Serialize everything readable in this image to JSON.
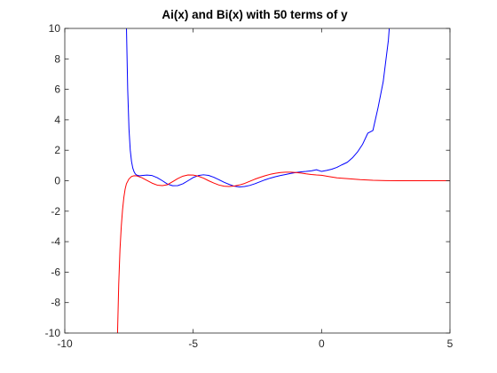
{
  "chart_data": {
    "type": "line",
    "title": "Ai(x) and Bi(x) with 50 terms of y",
    "xlabel": "",
    "ylabel": "",
    "xlim": [
      -10,
      5
    ],
    "ylim": [
      -10,
      10
    ],
    "xticks": [
      -10,
      -5,
      0,
      5
    ],
    "yticks": [
      -10,
      -8,
      -6,
      -4,
      -2,
      0,
      2,
      4,
      6,
      8,
      10
    ],
    "grid": false,
    "legend": "none",
    "series": [
      {
        "color": "#0000ff",
        "x": [
          -7.6,
          -7.55,
          -7.5,
          -7.45,
          -7.4,
          -7.35,
          -7.3,
          -7.25,
          -7.2,
          -7.1,
          -7.0,
          -6.8,
          -6.6,
          -6.4,
          -6.2,
          -6.0,
          -5.8,
          -5.6,
          -5.4,
          -5.2,
          -5.0,
          -4.8,
          -4.6,
          -4.4,
          -4.2,
          -4.0,
          -3.8,
          -3.6,
          -3.4,
          -3.2,
          -3.0,
          -2.8,
          -2.6,
          -2.4,
          -2.2,
          -2.0,
          -1.8,
          -1.6,
          -1.4,
          -1.2,
          -1.0,
          -0.8,
          -0.6,
          -0.4,
          -0.2,
          0.0,
          0.2,
          0.4,
          0.6,
          0.8,
          1.0,
          1.2,
          1.4,
          1.6,
          1.8,
          2.0,
          2.2,
          2.4,
          2.6,
          2.65
        ],
        "y": [
          10.2,
          6.0,
          3.4,
          2.0,
          1.25,
          0.82,
          0.58,
          0.44,
          0.37,
          0.32,
          0.34,
          0.37,
          0.34,
          0.2,
          0.0,
          -0.22,
          -0.33,
          -0.32,
          -0.2,
          0.0,
          0.21,
          0.34,
          0.39,
          0.35,
          0.23,
          0.07,
          -0.1,
          -0.24,
          -0.36,
          -0.41,
          -0.38,
          -0.31,
          -0.2,
          -0.07,
          0.06,
          0.17,
          0.26,
          0.34,
          0.41,
          0.48,
          0.54,
          0.58,
          0.61,
          0.65,
          0.72,
          0.61,
          0.68,
          0.76,
          0.88,
          1.05,
          1.21,
          1.5,
          1.89,
          2.4,
          3.12,
          3.3,
          4.8,
          6.5,
          9.2,
          10.3
        ]
      },
      {
        "color": "#ff0000",
        "x": [
          -7.95,
          -7.9,
          -7.85,
          -7.8,
          -7.75,
          -7.7,
          -7.65,
          -7.6,
          -7.5,
          -7.4,
          -7.3,
          -7.2,
          -7.1,
          -7.0,
          -6.8,
          -6.6,
          -6.4,
          -6.2,
          -6.0,
          -5.8,
          -5.6,
          -5.4,
          -5.2,
          -5.0,
          -4.8,
          -4.6,
          -4.4,
          -4.2,
          -4.0,
          -3.8,
          -3.6,
          -3.4,
          -3.2,
          -3.0,
          -2.8,
          -2.6,
          -2.4,
          -2.2,
          -2.0,
          -1.8,
          -1.6,
          -1.4,
          -1.2,
          -1.0,
          -0.8,
          -0.6,
          -0.4,
          -0.2,
          0.0,
          0.3,
          0.6,
          1.0,
          1.5,
          2.0,
          2.5,
          3.0,
          4.0,
          5.0
        ],
        "y": [
          -10.3,
          -6.8,
          -4.5,
          -3.0,
          -1.9,
          -1.1,
          -0.55,
          -0.2,
          0.12,
          0.28,
          0.33,
          0.32,
          0.26,
          0.2,
          0.02,
          -0.16,
          -0.29,
          -0.32,
          -0.26,
          -0.06,
          0.14,
          0.3,
          0.38,
          0.37,
          0.3,
          0.17,
          0.0,
          -0.15,
          -0.28,
          -0.36,
          -0.38,
          -0.35,
          -0.28,
          -0.18,
          -0.04,
          0.1,
          0.22,
          0.33,
          0.42,
          0.49,
          0.54,
          0.56,
          0.56,
          0.54,
          0.5,
          0.45,
          0.41,
          0.38,
          0.36,
          0.27,
          0.19,
          0.14,
          0.07,
          0.03,
          0.01,
          0.0,
          0.0,
          0.0
        ]
      }
    ]
  }
}
